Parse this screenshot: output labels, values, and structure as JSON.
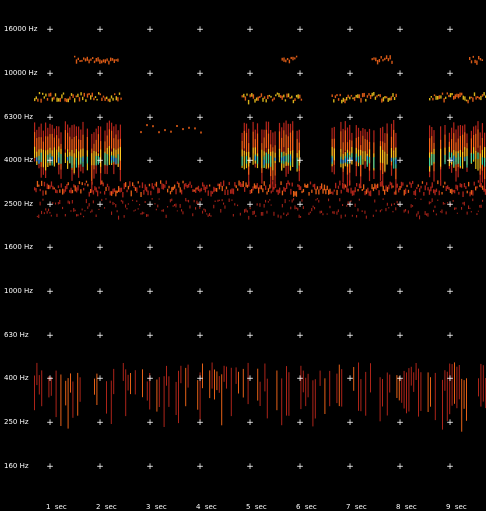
{
  "spectrogram": {
    "frequency_axis": {
      "labels": [
        "16000 Hz",
        "10000 Hz",
        "6300 Hz",
        "4000 Hz",
        "2500 Hz",
        "1600 Hz",
        "1000 Hz",
        "630 Hz",
        "400 Hz",
        "250 Hz",
        "160 Hz"
      ]
    },
    "time_axis": {
      "labels": [
        "1  sec",
        "2  sec",
        "3  sec",
        "4  sec",
        "5  sec",
        "6  sec",
        "7  sec",
        "8  sec",
        "9  sec"
      ]
    },
    "grid_marker": "+",
    "colors": {
      "background": "#000000",
      "label_text": "#ffffff",
      "grid_marker": "#ffffff",
      "low_energy": "#c0281c",
      "mid_energy": "#ff6a1a",
      "high_energy": "#ffd21f",
      "peak_energy": "#2fd6a8",
      "max_energy": "#1f8fff"
    },
    "song_bursts_seconds": [
      {
        "start": 0.0,
        "end": 1.75
      },
      {
        "start": 4.15,
        "end": 5.35
      },
      {
        "start": 5.95,
        "end": 7.25
      },
      {
        "start": 7.9,
        "end": 9.65
      }
    ]
  }
}
